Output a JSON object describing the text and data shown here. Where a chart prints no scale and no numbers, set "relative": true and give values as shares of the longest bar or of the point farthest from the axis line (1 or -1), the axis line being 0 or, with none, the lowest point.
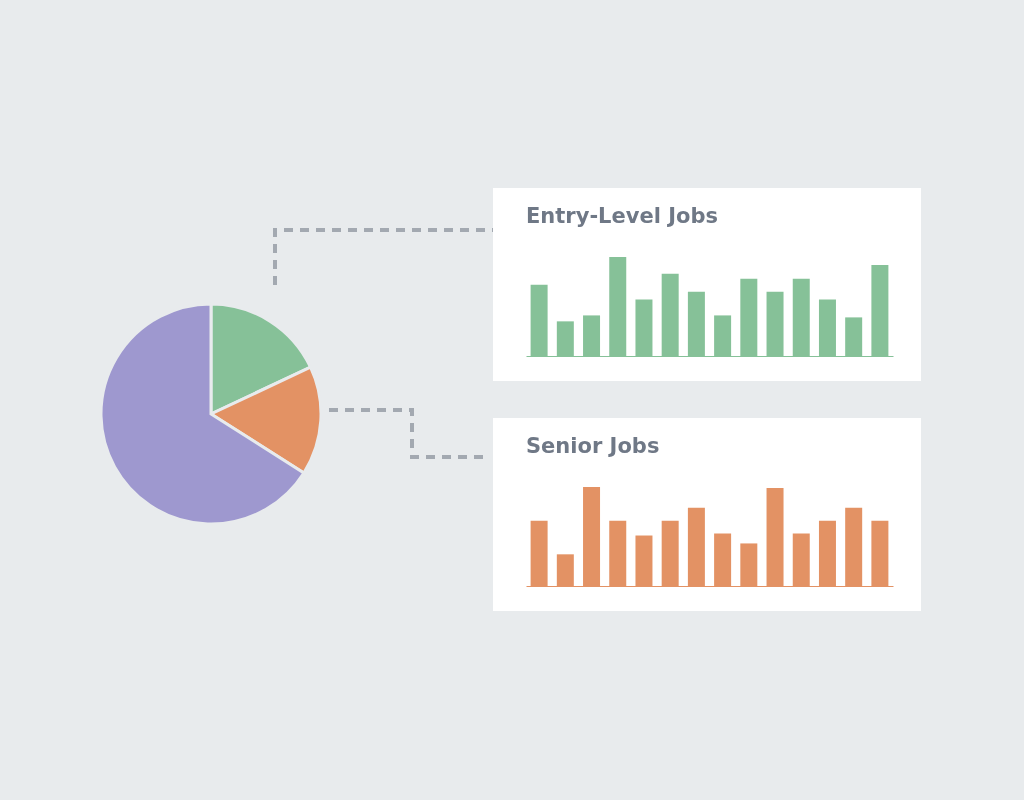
{
  "chart_data": [
    {
      "type": "pie",
      "categories": [
        null,
        null,
        null
      ],
      "values": [
        18,
        16,
        66
      ],
      "colors": [
        "#86c198",
        "#e39264",
        "#9e98cf"
      ]
    },
    {
      "type": "bar",
      "title": "Entry-Level Jobs",
      "relative": true,
      "categories": [
        null,
        null,
        null,
        null,
        null,
        null,
        null,
        null,
        null,
        null,
        null,
        null,
        null,
        null
      ],
      "values": [
        0.72,
        0.35,
        0.41,
        1,
        0.57,
        0.83,
        0.65,
        0.41,
        0.78,
        0.65,
        0.78,
        0.57,
        0.39,
        0.92
      ],
      "color": "#86c198"
    },
    {
      "type": "bar",
      "title": "Senior Jobs",
      "relative": true,
      "categories": [
        null,
        null,
        null,
        null,
        null,
        null,
        null,
        null,
        null,
        null,
        null,
        null,
        null,
        null
      ],
      "values": [
        0.66,
        0.32,
        1,
        0.66,
        0.51,
        0.66,
        0.79,
        0.53,
        0.43,
        0.99,
        0.53,
        0.66,
        0.79,
        0.66
      ],
      "color": "#e39264"
    }
  ]
}
